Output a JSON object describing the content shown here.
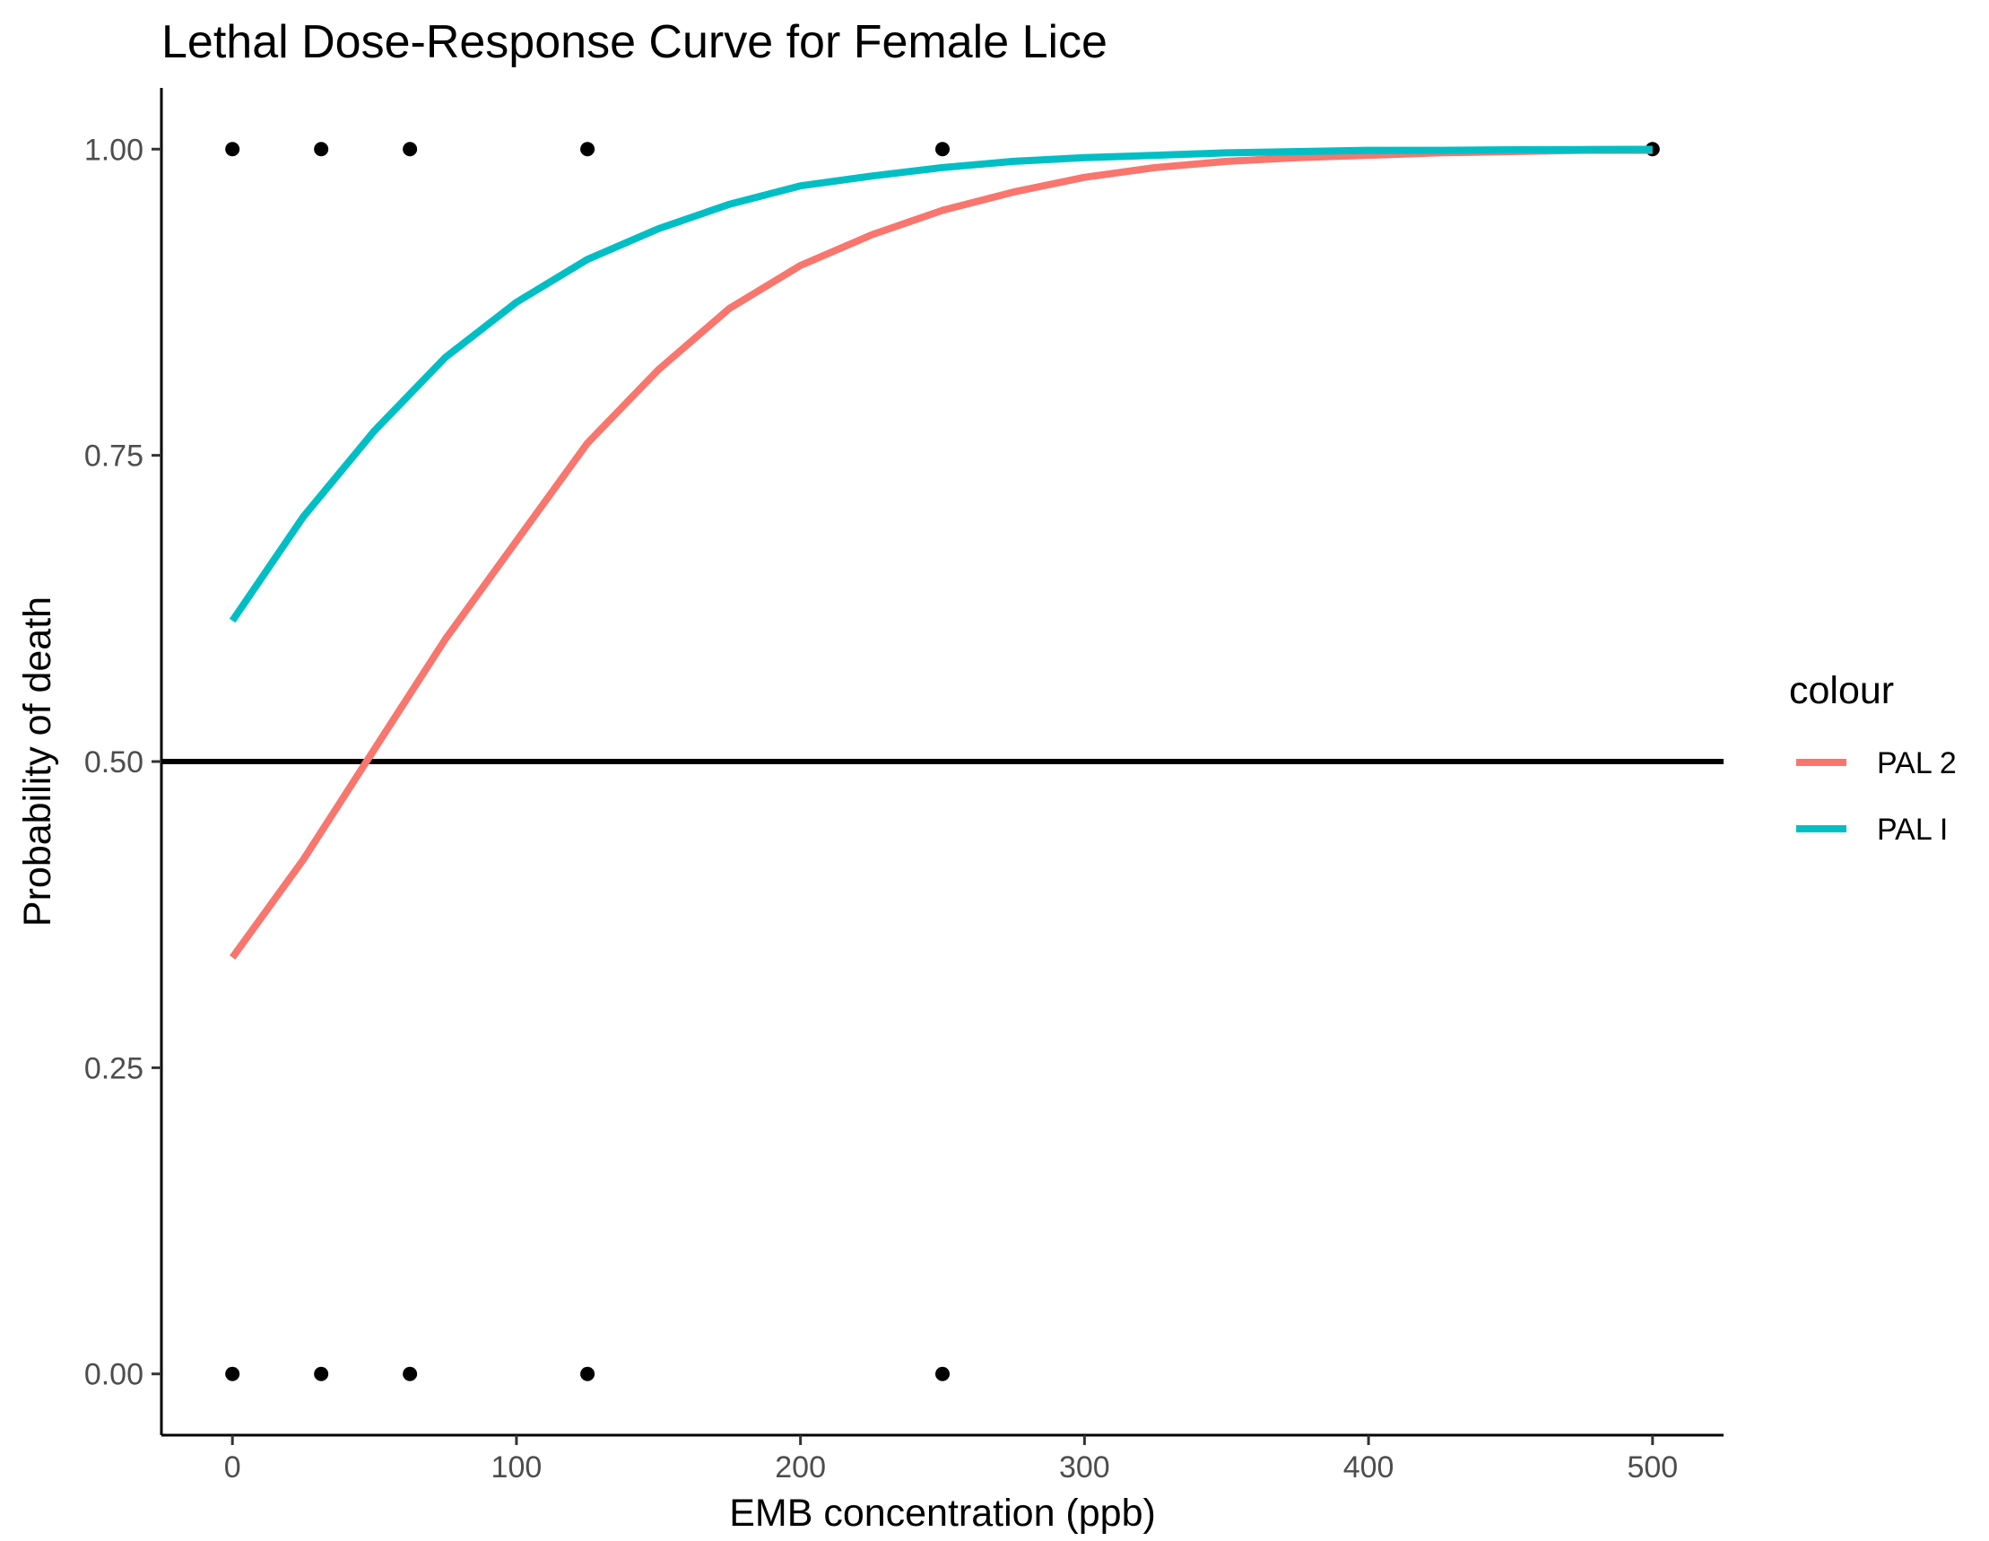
{
  "chart_data": {
    "type": "line",
    "title": "Lethal Dose-Response Curve for Female Lice",
    "xlabel": "EMB concentration (ppb)",
    "ylabel": "Probability of death",
    "xlim": [
      -25,
      525
    ],
    "ylim": [
      -0.05,
      1.05
    ],
    "x_ticks": [
      0,
      100,
      200,
      300,
      400,
      500
    ],
    "x_tick_labels": [
      "0",
      "100",
      "200",
      "300",
      "400",
      "500"
    ],
    "y_ticks": [
      0,
      0.25,
      0.5,
      0.75,
      1.0
    ],
    "y_tick_labels": [
      "0.00",
      "0.25",
      "0.50",
      "0.75",
      "1.00"
    ],
    "grid": false,
    "reference_line": {
      "y": 0.5,
      "color": "#000000"
    },
    "legend": {
      "title": "colour",
      "position": "right"
    },
    "series": [
      {
        "name": "PAL 2",
        "color": "#F8766D",
        "x": [
          0,
          25,
          50,
          75,
          100,
          125,
          150,
          175,
          200,
          225,
          250,
          275,
          300,
          325,
          350,
          375,
          400,
          425,
          450,
          475,
          500
        ],
        "values": [
          0.34,
          0.42,
          0.51,
          0.6,
          0.68,
          0.76,
          0.82,
          0.87,
          0.905,
          0.93,
          0.95,
          0.965,
          0.977,
          0.985,
          0.99,
          0.993,
          0.995,
          0.997,
          0.998,
          0.999,
          0.999
        ]
      },
      {
        "name": "PAL I",
        "color": "#00BFC4",
        "x": [
          0,
          25,
          50,
          75,
          100,
          125,
          150,
          175,
          200,
          225,
          250,
          275,
          300,
          325,
          350,
          375,
          400,
          425,
          450,
          475,
          500
        ],
        "values": [
          0.615,
          0.7,
          0.77,
          0.83,
          0.875,
          0.91,
          0.935,
          0.955,
          0.97,
          0.978,
          0.985,
          0.99,
          0.993,
          0.995,
          0.997,
          0.998,
          0.999,
          0.999,
          0.9995,
          0.9997,
          0.9998
        ]
      }
    ],
    "points": {
      "color": "#000000",
      "x": [
        0,
        31.25,
        62.5,
        125,
        250,
        500,
        0,
        31.25,
        62.5,
        125,
        250
      ],
      "y": [
        1,
        1,
        1,
        1,
        1,
        1,
        0,
        0,
        0,
        0,
        0
      ]
    }
  }
}
